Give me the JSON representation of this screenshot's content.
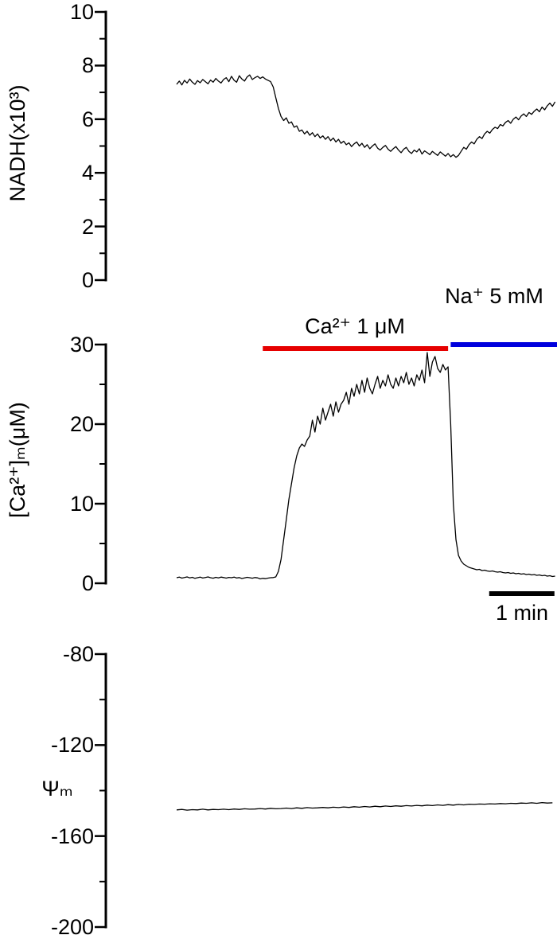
{
  "labels": {
    "nadh_axis": "NADH(x10³)",
    "ca_axis": "[Ca²⁺]ₘ(μM)",
    "psi_axis": "Ψₘ"
  },
  "ticks": {
    "nadh": [
      "10",
      "8",
      "6",
      "4",
      "2",
      "0"
    ],
    "ca": [
      "30",
      "20",
      "10",
      "0"
    ],
    "psi": [
      "-80",
      "-120",
      "-160",
      "-200"
    ]
  },
  "annotations": {
    "ca_bar": {
      "label": "Ca²⁺ 1 μM",
      "color": "#e60000",
      "t_start": 1.32,
      "t_end": 4.16
    },
    "na_bar": {
      "label": "Na⁺ 5 mM",
      "color": "#0000dd",
      "t_start": 4.2,
      "t_end": 5.83
    },
    "scale_bar": {
      "label": "1 min",
      "minutes": 1,
      "color": "#000000",
      "t_start": 4.79,
      "t_end": 5.79
    }
  },
  "chart_data": [
    {
      "type": "line",
      "name": "nadh",
      "ylabel": "NADH(x10³)",
      "x_unit": "min",
      "ylim": [
        0,
        10
      ],
      "yticks": [
        10,
        8,
        6,
        4,
        2,
        0
      ],
      "t0": 0,
      "dt": 0.04,
      "values": [
        7.3,
        7.42,
        7.28,
        7.45,
        7.35,
        7.5,
        7.38,
        7.3,
        7.44,
        7.36,
        7.48,
        7.4,
        7.32,
        7.46,
        7.38,
        7.52,
        7.42,
        7.35,
        7.48,
        7.55,
        7.4,
        7.6,
        7.45,
        7.38,
        7.62,
        7.5,
        7.42,
        7.58,
        7.65,
        7.48,
        7.55,
        7.6,
        7.52,
        7.58,
        7.5,
        7.45,
        7.4,
        7.2,
        6.8,
        6.4,
        6.1,
        5.95,
        6.05,
        5.85,
        5.9,
        5.7,
        5.75,
        5.55,
        5.6,
        5.45,
        5.55,
        5.4,
        5.5,
        5.35,
        5.45,
        5.3,
        5.38,
        5.25,
        5.35,
        5.2,
        5.3,
        5.15,
        5.25,
        5.1,
        5.18,
        5.05,
        5.12,
        4.98,
        5.08,
        5.15,
        5.0,
        5.1,
        4.95,
        5.05,
        4.9,
        5.0,
        5.08,
        4.92,
        4.85,
        4.95,
        5.02,
        4.88,
        4.8,
        4.9,
        4.98,
        4.85,
        4.75,
        4.88,
        4.95,
        4.8,
        4.72,
        4.85,
        4.78,
        4.9,
        4.7,
        4.82,
        4.75,
        4.68,
        4.8,
        4.72,
        4.65,
        4.78,
        4.7,
        4.62,
        4.72,
        4.6,
        4.68,
        4.58,
        4.65,
        4.8,
        4.95,
        4.88,
        5.05,
        5.15,
        5.08,
        5.25,
        5.35,
        5.28,
        5.45,
        5.55,
        5.48,
        5.62,
        5.7,
        5.65,
        5.8,
        5.75,
        5.88,
        5.95,
        5.85,
        6.0,
        6.08,
        5.98,
        6.12,
        6.2,
        6.1,
        6.25,
        6.18,
        6.3,
        6.38,
        6.28,
        6.45,
        6.35,
        6.5,
        6.6,
        6.48,
        6.65
      ]
    },
    {
      "type": "line",
      "name": "ca",
      "ylabel": "[Ca²⁺]ₘ(μM)",
      "x_unit": "min",
      "ylim": [
        0,
        30
      ],
      "yticks": [
        30,
        20,
        10,
        0
      ],
      "t0": 0,
      "dt": 0.04,
      "values": [
        0.7,
        0.78,
        0.65,
        0.72,
        0.8,
        0.68,
        0.75,
        0.62,
        0.7,
        0.78,
        0.66,
        0.73,
        0.8,
        0.7,
        0.64,
        0.75,
        0.68,
        0.78,
        0.72,
        0.65,
        0.74,
        0.7,
        0.78,
        0.66,
        0.72,
        0.6,
        0.68,
        0.75,
        0.7,
        0.64,
        0.72,
        0.68,
        0.55,
        0.62,
        0.58,
        0.65,
        0.7,
        0.72,
        0.8,
        1.5,
        3.0,
        5.5,
        8.0,
        10.5,
        12.5,
        14.5,
        16.0,
        17.0,
        17.5,
        17.2,
        18.0,
        18.5,
        20.5,
        19.0,
        21.0,
        20.0,
        22.0,
        20.5,
        21.5,
        22.5,
        21.0,
        22.8,
        21.5,
        22.5,
        23.0,
        24.0,
        22.5,
        24.5,
        23.5,
        25.0,
        23.8,
        25.5,
        24.0,
        25.8,
        24.5,
        23.8,
        25.0,
        26.0,
        24.5,
        25.5,
        24.8,
        26.2,
        25.0,
        24.5,
        25.8,
        24.8,
        26.0,
        25.2,
        26.5,
        25.0,
        25.8,
        24.8,
        26.2,
        25.5,
        26.8,
        25.2,
        29.0,
        26.0,
        27.8,
        28.5,
        27.0,
        26.5,
        27.5,
        26.8,
        27.2,
        20.0,
        10.0,
        5.5,
        3.5,
        2.8,
        2.4,
        2.2,
        2.0,
        1.9,
        1.8,
        1.7,
        1.75,
        1.6,
        1.65,
        1.55,
        1.5,
        1.55,
        1.45,
        1.4,
        1.45,
        1.35,
        1.3,
        1.35,
        1.25,
        1.3,
        1.2,
        1.25,
        1.15,
        1.2,
        1.1,
        1.15,
        1.05,
        1.1,
        1.0,
        1.05,
        0.95,
        1.0,
        0.9,
        0.95,
        0.85,
        0.9
      ]
    },
    {
      "type": "line",
      "name": "psi",
      "ylabel": "Ψₘ",
      "x_unit": "min",
      "ylim": [
        -200,
        -80
      ],
      "yticks": [
        -80,
        -120,
        -160,
        -200
      ],
      "t0": 0,
      "dt": 0.08,
      "values": [
        -148.5,
        -148.3,
        -148.6,
        -148.4,
        -148.5,
        -148.2,
        -148.5,
        -148.3,
        -148.4,
        -148.2,
        -148.4,
        -148.1,
        -148.3,
        -148.0,
        -148.2,
        -148.1,
        -147.9,
        -148.1,
        -147.8,
        -148.0,
        -147.9,
        -147.7,
        -147.9,
        -147.6,
        -147.8,
        -147.5,
        -147.7,
        -147.6,
        -147.4,
        -147.6,
        -147.3,
        -147.5,
        -147.2,
        -147.4,
        -147.1,
        -147.3,
        -147.0,
        -147.2,
        -146.9,
        -147.1,
        -146.8,
        -147.0,
        -146.7,
        -146.9,
        -146.6,
        -146.8,
        -146.5,
        -146.7,
        -146.4,
        -146.6,
        -146.3,
        -146.5,
        -146.2,
        -146.4,
        -146.1,
        -146.3,
        -146.0,
        -146.1,
        -145.9,
        -146.0,
        -145.8,
        -145.9,
        -145.7,
        -145.8,
        -145.6,
        -145.7,
        -145.5,
        -145.6,
        -145.4,
        -145.6,
        -145.3,
        -145.5,
        -145.4
      ]
    }
  ]
}
